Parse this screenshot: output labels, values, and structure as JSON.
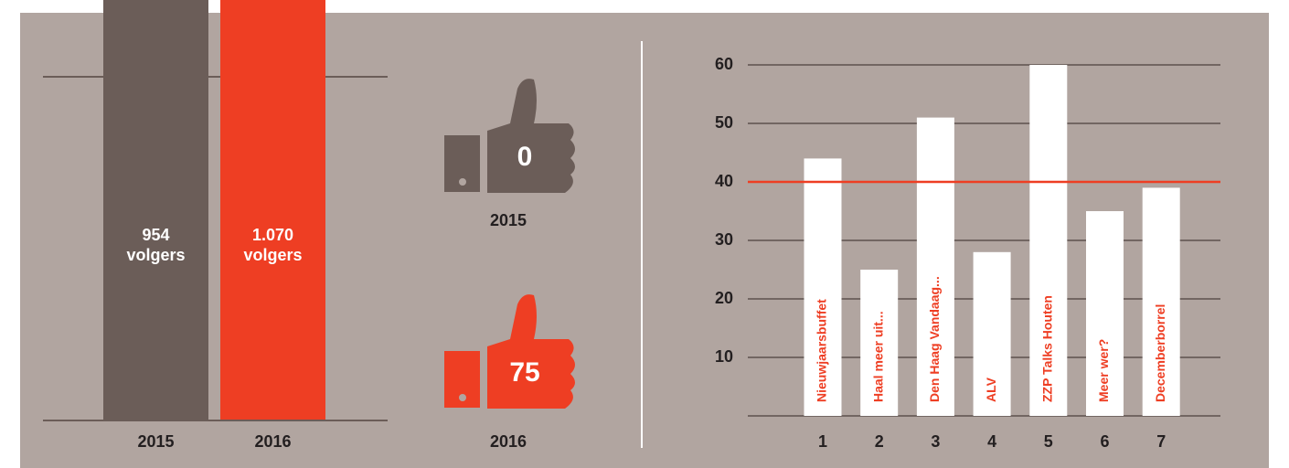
{
  "chart_data": [
    {
      "type": "column-banner",
      "categories": [
        "2015",
        "2016"
      ],
      "values": [
        954,
        1070
      ],
      "value_labels": [
        "954 volgers",
        "1.070 volgers"
      ],
      "colors": [
        "#6b5d58",
        "#ee3e23"
      ]
    },
    {
      "type": "thumbs",
      "categories": [
        "2015",
        "2016"
      ],
      "values": [
        0,
        75
      ],
      "colors": [
        "#6b5d58",
        "#ee3e23"
      ]
    },
    {
      "type": "bar",
      "categories": [
        "1",
        "2",
        "3",
        "4",
        "5",
        "6",
        "7"
      ],
      "bar_labels": [
        "Nieuwjaarsbuffet",
        "Haal meer uit...",
        "Den Haag Vandaag...",
        "ALV",
        "ZZP Talks Houten",
        "Meer wer?",
        "Decemberborrel"
      ],
      "values": [
        44,
        25,
        51,
        28,
        60,
        35,
        39
      ],
      "color": "#ffffff",
      "label_color": "#ee3e23",
      "ylim": [
        0,
        60
      ],
      "yticks": [
        10,
        20,
        30,
        40,
        50,
        60
      ],
      "grid": true,
      "reference_line": 40,
      "reference_color": "#ee3e23"
    }
  ]
}
